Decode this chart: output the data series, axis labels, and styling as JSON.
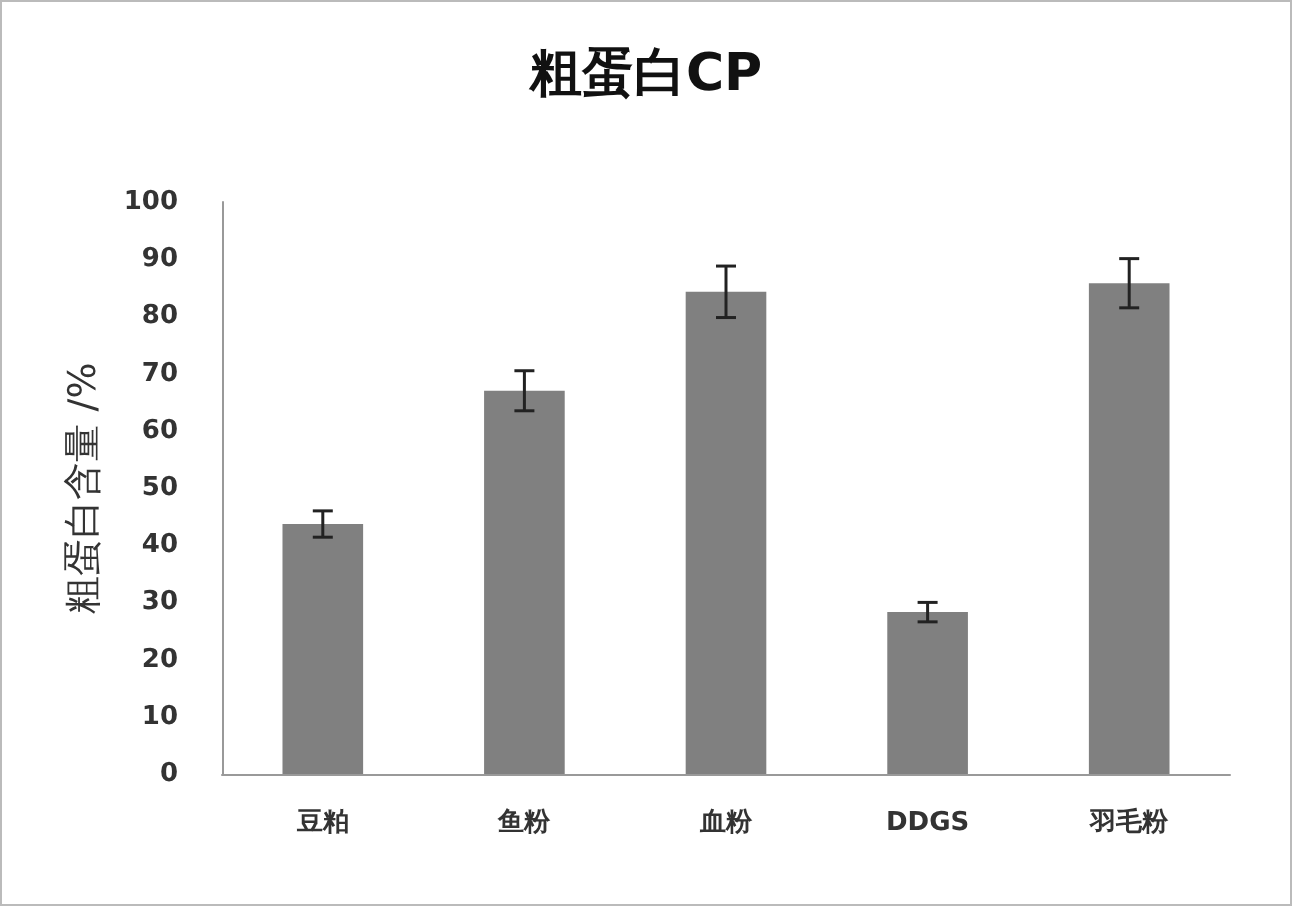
{
  "chart_data": {
    "type": "bar",
    "title": "粗蛋白CP",
    "ylabel": "粗蛋白含量 /%",
    "categories": [
      "豆粕",
      "鱼粉",
      "血粉",
      "DDGS",
      "羽毛粉"
    ],
    "values": [
      43.7,
      67,
      84.3,
      28.3,
      85.8
    ],
    "errors": [
      2.3,
      3.5,
      4.5,
      1.7,
      4.3
    ],
    "color": "#808080",
    "ylim": [
      0,
      100
    ],
    "yticks": [
      0,
      10,
      20,
      30,
      40,
      50,
      60,
      70,
      80,
      90,
      100
    ],
    "grid": false
  }
}
